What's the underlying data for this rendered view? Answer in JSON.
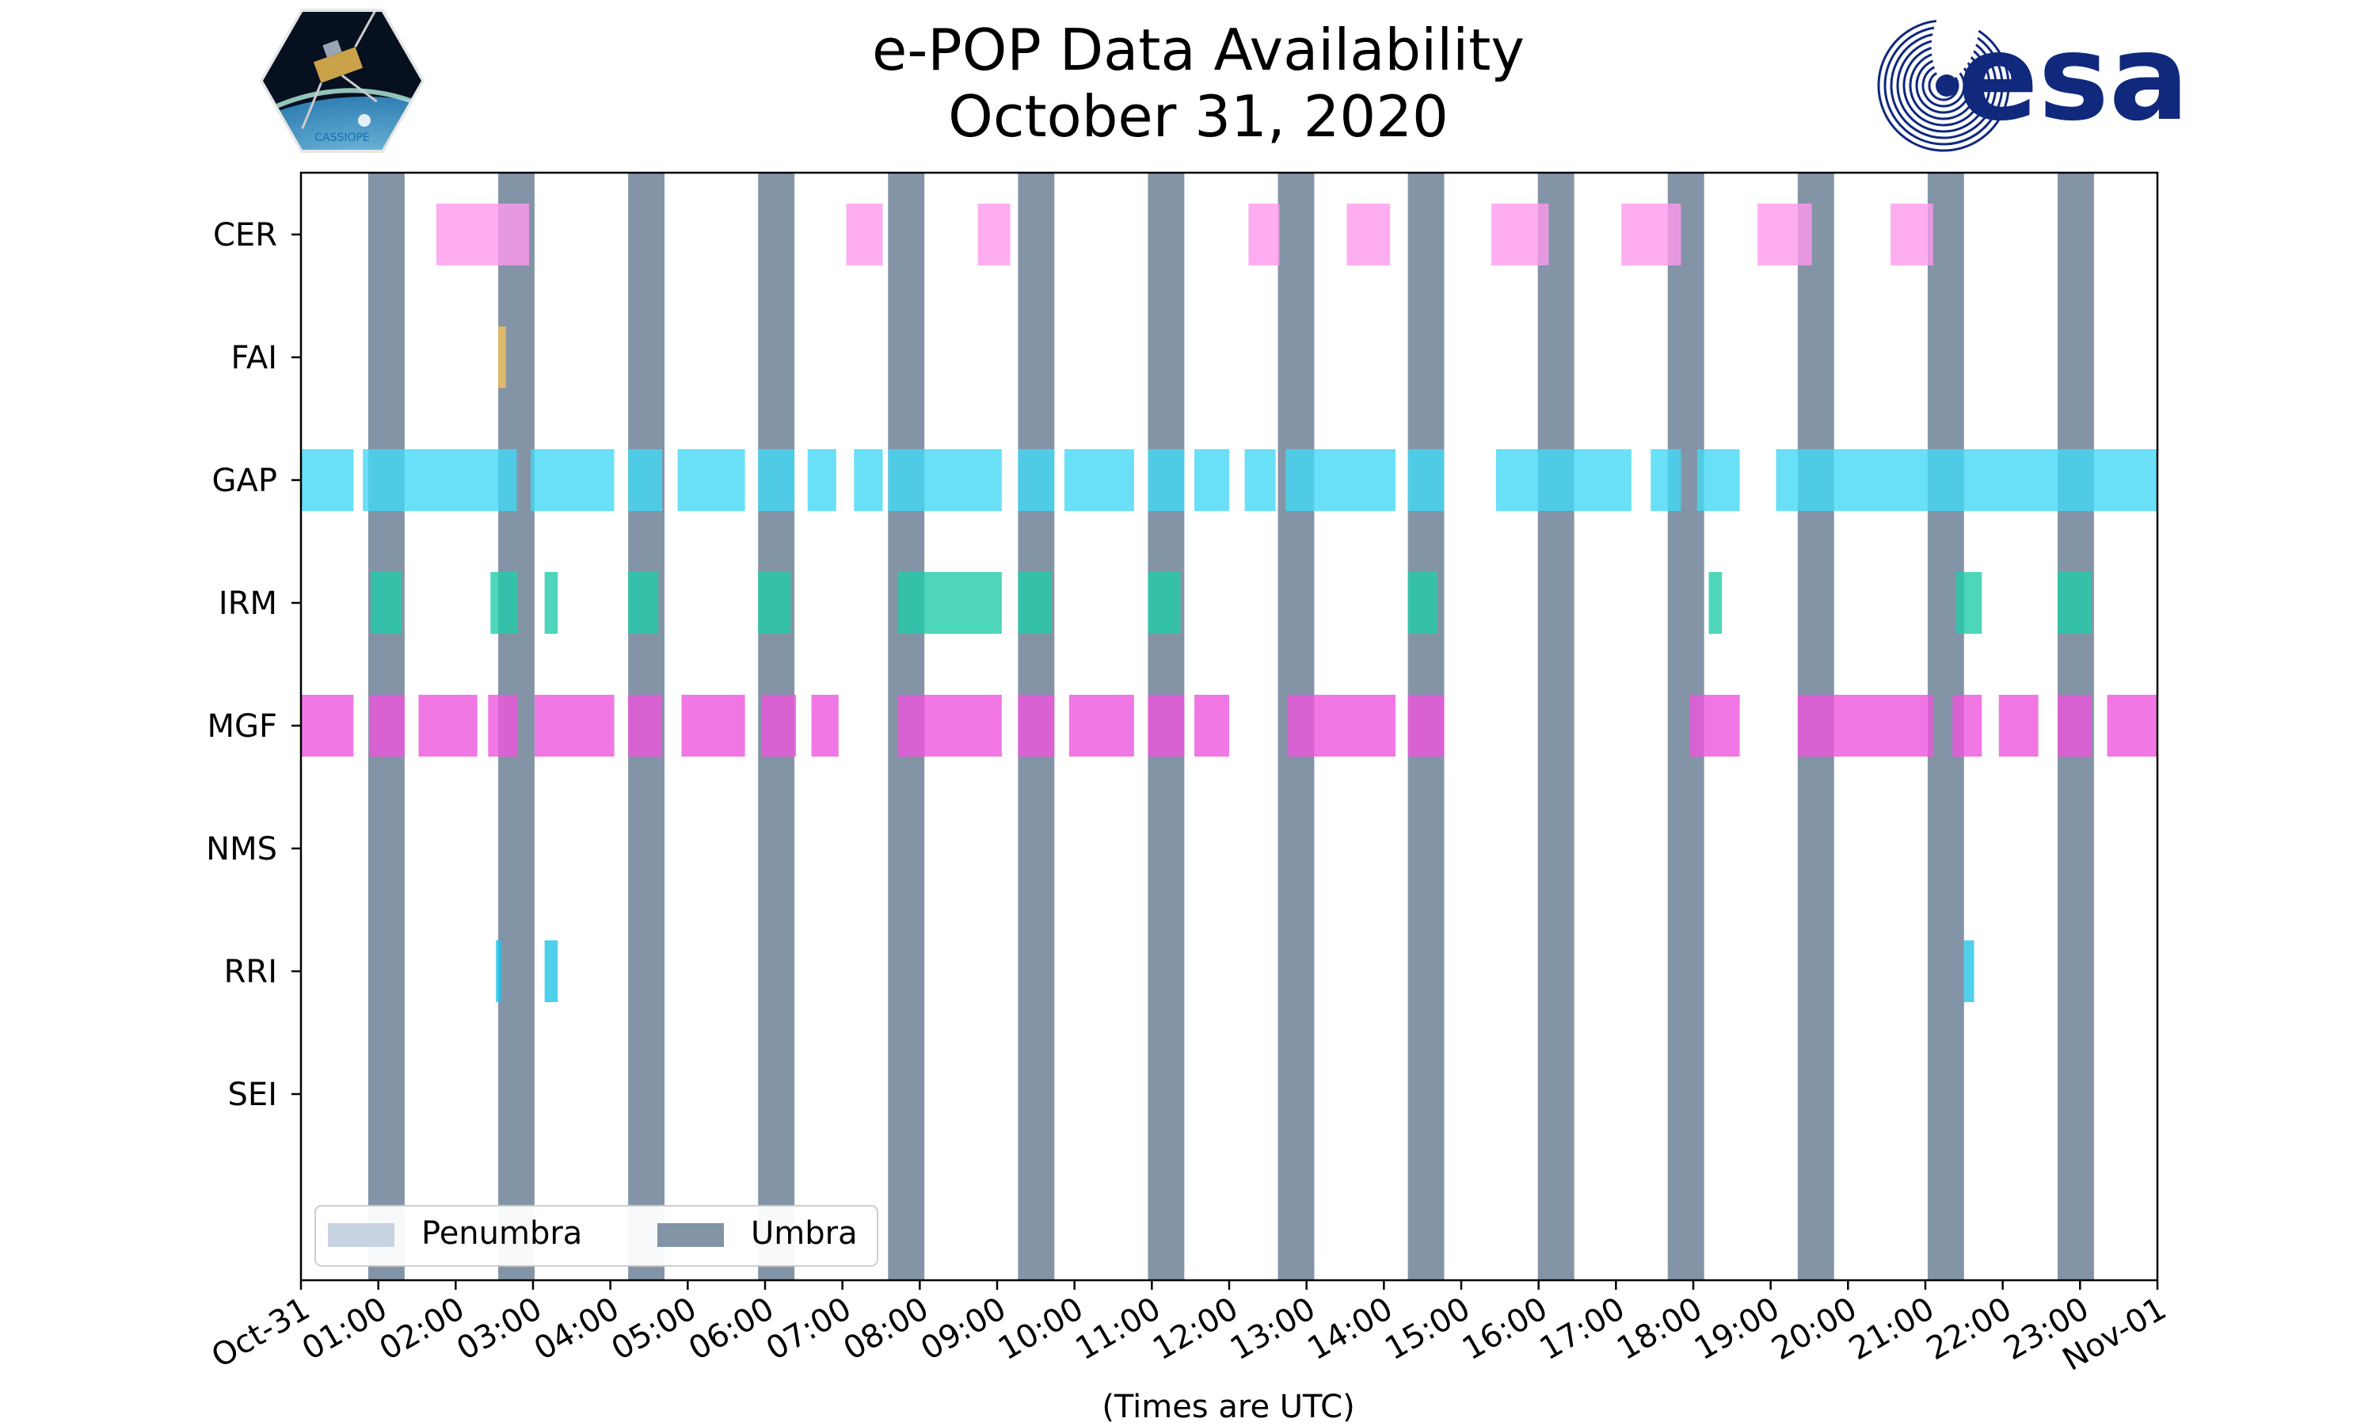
{
  "chart_data": {
    "type": "timeline",
    "title": "e-POP Data Availability",
    "subtitle": "October 31, 2020",
    "xlabel": "(Times are UTC)",
    "xlim_hours": [
      0,
      24
    ],
    "x_tick_labels": [
      "Oct-31",
      "01:00",
      "02:00",
      "03:00",
      "04:00",
      "05:00",
      "06:00",
      "07:00",
      "08:00",
      "09:00",
      "10:00",
      "11:00",
      "12:00",
      "13:00",
      "14:00",
      "15:00",
      "16:00",
      "17:00",
      "18:00",
      "19:00",
      "20:00",
      "21:00",
      "22:00",
      "23:00",
      "Nov-01"
    ],
    "instruments": [
      "CER",
      "FAI",
      "GAP",
      "IRM",
      "MGF",
      "NMS",
      "RRI",
      "SEI"
    ],
    "umbra_intervals": [
      [
        0.87,
        1.34
      ],
      [
        2.55,
        3.02
      ],
      [
        4.23,
        4.7
      ],
      [
        5.91,
        6.38
      ],
      [
        7.59,
        8.06
      ],
      [
        9.27,
        9.74
      ],
      [
        10.95,
        11.42
      ],
      [
        12.63,
        13.1
      ],
      [
        14.31,
        14.78
      ],
      [
        15.99,
        16.46
      ],
      [
        17.67,
        18.14
      ],
      [
        19.35,
        19.82
      ],
      [
        21.03,
        21.5
      ],
      [
        22.71,
        23.18
      ]
    ],
    "series": [
      {
        "name": "CER",
        "color": "#ff99ee",
        "intervals": [
          [
            1.75,
            2.95
          ],
          [
            7.05,
            7.52
          ],
          [
            8.75,
            9.17
          ],
          [
            12.25,
            12.65
          ],
          [
            13.52,
            14.08
          ],
          [
            15.39,
            16.13
          ],
          [
            17.07,
            17.84
          ],
          [
            18.83,
            19.53
          ],
          [
            20.55,
            21.1
          ]
        ]
      },
      {
        "name": "FAI",
        "color": "#f2c05a",
        "intervals": [
          [
            2.55,
            2.65
          ]
        ]
      },
      {
        "name": "GAP",
        "color": "#44d8f5",
        "intervals": [
          [
            0.0,
            0.68
          ],
          [
            0.8,
            2.79
          ],
          [
            2.97,
            4.05
          ],
          [
            4.23,
            4.67
          ],
          [
            4.87,
            5.74
          ],
          [
            5.91,
            6.38
          ],
          [
            6.55,
            6.92
          ],
          [
            7.15,
            7.52
          ],
          [
            7.59,
            9.06
          ],
          [
            9.27,
            9.74
          ],
          [
            9.87,
            10.77
          ],
          [
            10.95,
            11.42
          ],
          [
            11.55,
            12.0
          ],
          [
            12.2,
            12.6
          ],
          [
            12.73,
            14.15
          ],
          [
            14.31,
            14.78
          ],
          [
            15.45,
            17.2
          ],
          [
            17.45,
            17.84
          ],
          [
            18.05,
            18.6
          ],
          [
            19.07,
            24.0
          ]
        ]
      },
      {
        "name": "IRM",
        "color": "#22ccaa",
        "intervals": [
          [
            0.9,
            1.3
          ],
          [
            2.45,
            2.8
          ],
          [
            3.15,
            3.32
          ],
          [
            4.23,
            4.62
          ],
          [
            5.91,
            6.33
          ],
          [
            7.72,
            9.06
          ],
          [
            9.27,
            9.7
          ],
          [
            10.95,
            11.37
          ],
          [
            14.31,
            14.69
          ],
          [
            18.2,
            18.37
          ],
          [
            21.4,
            21.73
          ],
          [
            22.71,
            23.15
          ]
        ]
      },
      {
        "name": "MGF",
        "color": "#ee55dd",
        "intervals": [
          [
            0.0,
            0.68
          ],
          [
            0.88,
            1.34
          ],
          [
            1.52,
            2.28
          ],
          [
            2.42,
            2.8
          ],
          [
            3.02,
            4.05
          ],
          [
            4.23,
            4.67
          ],
          [
            4.92,
            5.74
          ],
          [
            5.95,
            6.4
          ],
          [
            6.6,
            6.95
          ],
          [
            7.72,
            9.06
          ],
          [
            9.27,
            9.74
          ],
          [
            9.93,
            10.77
          ],
          [
            10.95,
            11.42
          ],
          [
            11.55,
            12.0
          ],
          [
            12.75,
            14.15
          ],
          [
            14.31,
            14.78
          ],
          [
            17.95,
            18.6
          ],
          [
            19.35,
            21.1
          ],
          [
            21.35,
            21.73
          ],
          [
            21.95,
            22.46
          ],
          [
            22.71,
            23.15
          ],
          [
            23.35,
            24.0
          ]
        ]
      },
      {
        "name": "NMS",
        "color": "#888888",
        "intervals": []
      },
      {
        "name": "RRI",
        "color": "#22c4e8",
        "intervals": [
          [
            2.52,
            2.59
          ],
          [
            3.15,
            3.32
          ],
          [
            21.5,
            21.63
          ]
        ]
      },
      {
        "name": "SEI",
        "color": "#888888",
        "intervals": []
      }
    ],
    "legend": {
      "placement": "lower-left",
      "entries": [
        {
          "label": "Penumbra",
          "color": "#c8d3e2"
        },
        {
          "label": "Umbra",
          "color": "#8494a7"
        }
      ]
    }
  },
  "logos": {
    "left": {
      "name": "CASSIOPE",
      "text": "CASSIOPE"
    },
    "right": {
      "name": "esa",
      "text": "esa",
      "color": "#10297d"
    }
  }
}
